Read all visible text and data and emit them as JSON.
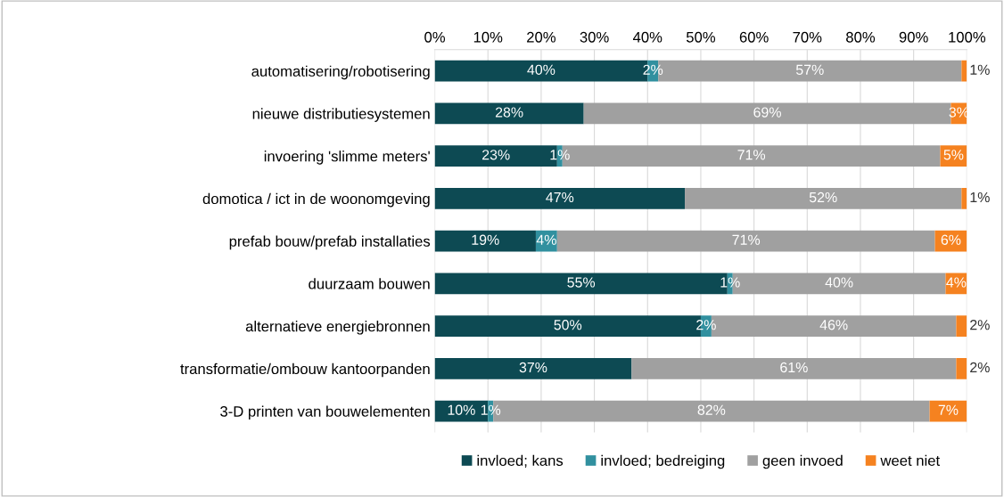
{
  "chart_data": {
    "type": "bar",
    "orientation": "horizontal",
    "stacked": true,
    "categories": [
      "automatisering/robotisering",
      "nieuwe distributiesystemen",
      "invoering 'slimme meters'",
      "domotica / ict in de woonomgeving",
      "prefab bouw/prefab installaties",
      "duurzaam bouwen",
      "alternatieve energiebronnen",
      "transformatie/ombouw kantoorpanden",
      "3-D printen van bouwelementen"
    ],
    "series": [
      {
        "name": "invloed; kans",
        "color": "#0d4a53",
        "values": [
          40,
          28,
          23,
          47,
          19,
          55,
          50,
          37,
          10
        ],
        "value_labels": [
          "40%",
          "28%",
          "23%",
          "47%",
          "19%",
          "55%",
          "50%",
          "37%",
          "10%"
        ]
      },
      {
        "name": "invloed; bedreiging",
        "color": "#31909f",
        "values": [
          2,
          0,
          1,
          0,
          4,
          1,
          2,
          0,
          1
        ],
        "value_labels": [
          "2%",
          null,
          "1%",
          null,
          "4%",
          "1%",
          "2%",
          null,
          "1%"
        ]
      },
      {
        "name": "geen invoed",
        "color": "#a0a0a0",
        "values": [
          57,
          69,
          71,
          52,
          71,
          40,
          46,
          61,
          82
        ],
        "value_labels": [
          "57%",
          "69%",
          "71%",
          "52%",
          "71%",
          "40%",
          "46%",
          "61%",
          "82%"
        ]
      },
      {
        "name": "weet niet",
        "color": "#f58220",
        "values": [
          1,
          3,
          5,
          1,
          6,
          4,
          2,
          2,
          7
        ],
        "value_labels": [
          "1%",
          "3%",
          "5%",
          "1%",
          "6%",
          "4%",
          "2%",
          "2%",
          "7%"
        ]
      }
    ],
    "xlim": [
      0,
      100
    ],
    "xticks": [
      {
        "value": 0,
        "label": "0%"
      },
      {
        "value": 10,
        "label": "10%"
      },
      {
        "value": 20,
        "label": "20%"
      },
      {
        "value": 30,
        "label": "30%"
      },
      {
        "value": 40,
        "label": "40%"
      },
      {
        "value": 50,
        "label": "50%"
      },
      {
        "value": 60,
        "label": "60%"
      },
      {
        "value": 70,
        "label": "70%"
      },
      {
        "value": 80,
        "label": "80%"
      },
      {
        "value": 90,
        "label": "90%"
      },
      {
        "value": 100,
        "label": "100%"
      }
    ],
    "grid": "x",
    "legend": "bottom"
  }
}
